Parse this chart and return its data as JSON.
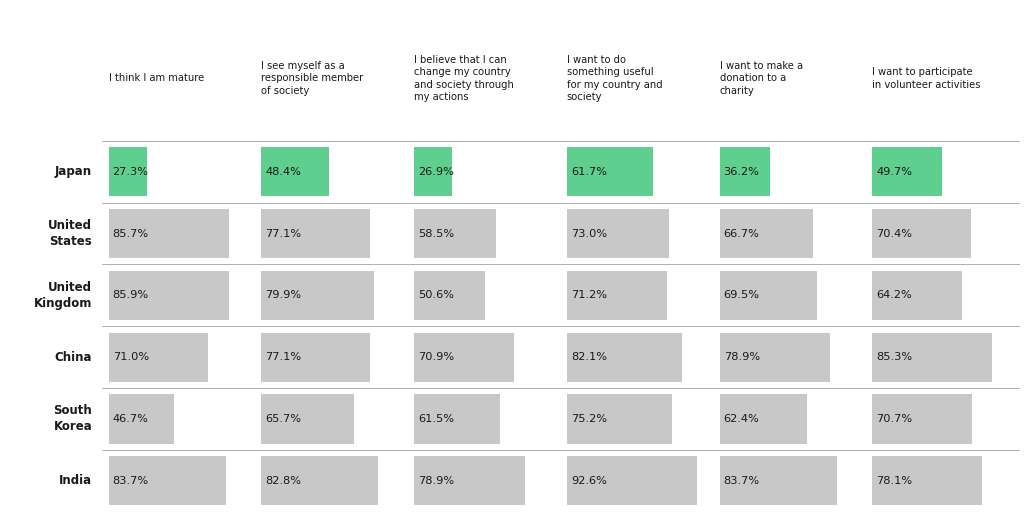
{
  "columns": [
    "I think I am mature",
    "I see myself as a\nresponsible member\nof society",
    "I believe that I can\nchange my country\nand society through\nmy actions",
    "I want to do\nsomething useful\nfor my country and\nsociety",
    "I want to make a\ndonation to a\ncharity",
    "I want to participate\nin volunteer activities"
  ],
  "rows": [
    "Japan",
    "United\nStates",
    "United\nKingdom",
    "China",
    "South\nKorea",
    "India"
  ],
  "values": [
    [
      27.3,
      48.4,
      26.9,
      61.7,
      36.2,
      49.7
    ],
    [
      85.7,
      77.1,
      58.5,
      73.0,
      66.7,
      70.4
    ],
    [
      85.9,
      79.9,
      50.6,
      71.2,
      69.5,
      64.2
    ],
    [
      71.0,
      77.1,
      70.9,
      82.1,
      78.9,
      85.3
    ],
    [
      46.7,
      65.7,
      61.5,
      75.2,
      62.4,
      70.7
    ],
    [
      83.7,
      82.8,
      78.9,
      92.6,
      83.7,
      78.1
    ]
  ],
  "japan_color": "#5ecf8e",
  "other_color": "#c8c8c8",
  "bg_color": "#ffffff",
  "text_color": "#1a1a1a",
  "header_color": "#1a1a1a",
  "row_label_color": "#1a1a1a",
  "separator_color": "#b0b0b0",
  "fig_width": 10.24,
  "fig_height": 5.22,
  "dpi": 100
}
